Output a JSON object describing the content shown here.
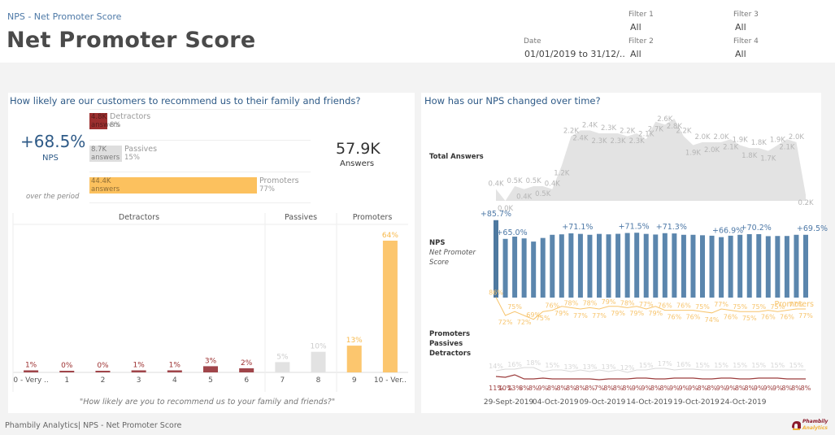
{
  "header": {
    "breadcrumb": "NPS - Net Promoter Score",
    "title": "Net Promoter Score"
  },
  "filters": {
    "date": {
      "label": "Date",
      "value": "01/01/2019 to 31/12/.."
    },
    "filter1": {
      "label": "Filter 1",
      "value": "All"
    },
    "filter2": {
      "label": "Filter 2",
      "value": "All"
    },
    "filter3": {
      "label": "Filter 3",
      "value": "All"
    },
    "filter4": {
      "label": "Filter 4",
      "value": "All"
    }
  },
  "left_panel": {
    "title": "How likely are our customers to recommend us to their family and friends?",
    "nps_value": "+68.5%",
    "nps_label": "NPS",
    "period_label": "over the period",
    "answers_value": "57.9K",
    "answers_label": "Answers",
    "breakdown": [
      {
        "name": "Detractors",
        "count": "4.8K",
        "unit": "answers",
        "pct": "8%",
        "share": 0.083,
        "color": "#9c2f2f"
      },
      {
        "name": "Passives",
        "count": "8.7K",
        "unit": "answers",
        "pct": "15%",
        "share": 0.15,
        "color": "#dedede"
      },
      {
        "name": "Promoters",
        "count": "44.4K",
        "unit": "answers",
        "pct": "77%",
        "share": 0.767,
        "color": "#fcc15e"
      }
    ],
    "question": "\"How likely are you to recommend us to your family and friends?\""
  },
  "right_panel": {
    "title": "How has our NPS changed over time?",
    "row_labels": {
      "total": "Total Answers",
      "nps": "NPS",
      "nps_sub1": "Net Promoter",
      "nps_sub2": "Score",
      "ppd1": "Promoters",
      "ppd2": "Passives",
      "ppd3": "Detractors"
    },
    "promoters_line_label": "Promoters"
  },
  "footer": {
    "text": "Phambily Analytics| NPS - Net Promoter Score",
    "logo_line1": "Phambily",
    "logo_line2": "Analytics"
  },
  "chart_data": [
    {
      "type": "bar",
      "title": "Score distribution",
      "xlabel": "\"How likely are you to recommend us to your family and friends?\"",
      "groups": [
        {
          "name": "Detractors",
          "categories": [
            "0 - Very ..",
            "1",
            "2",
            "3",
            "4",
            "5",
            "6"
          ],
          "color": "#a0454a"
        },
        {
          "name": "Passives",
          "categories": [
            "7",
            "8"
          ],
          "color": "#e2e2e2"
        },
        {
          "name": "Promoters",
          "categories": [
            "9",
            "10 - Ver.."
          ],
          "color": "#fcc66e"
        }
      ],
      "categories": [
        "0 - Very ..",
        "1",
        "2",
        "3",
        "4",
        "5",
        "6",
        "7",
        "8",
        "9",
        "10 - Ver.."
      ],
      "values": [
        1,
        0,
        0,
        1,
        1,
        3,
        2,
        5,
        10,
        13,
        64
      ],
      "value_labels": [
        "1%",
        "0%",
        "0%",
        "1%",
        "1%",
        "3%",
        "2%",
        "5%",
        "10%",
        "13%",
        "64%"
      ],
      "ylim": [
        0,
        64
      ]
    },
    {
      "type": "area",
      "title": "Total Answers",
      "unit": "K",
      "values": [
        0.4,
        0.0,
        0.5,
        0.4,
        0.5,
        0.5,
        0.4,
        1.2,
        2.2,
        2.4,
        2.4,
        2.3,
        2.3,
        2.3,
        2.2,
        2.3,
        2.1,
        2.7,
        2.6,
        2.8,
        2.2,
        1.9,
        2.0,
        2.0,
        2.0,
        2.1,
        1.9,
        1.8,
        1.8,
        1.7,
        1.9,
        2.1,
        2.0,
        0.2
      ],
      "color": "#e3e3e3"
    },
    {
      "type": "bar",
      "title": "NPS Net Promoter Score",
      "unit": "%",
      "values": [
        85.7,
        65.0,
        67.5,
        65.5,
        62.0,
        66.0,
        69.5,
        70.0,
        71.1,
        70.5,
        69.5,
        70.5,
        70.0,
        70.6,
        71.5,
        71.8,
        70.5,
        69.8,
        71.3,
        71.0,
        69.5,
        69.5,
        69.0,
        68.5,
        66.9,
        68.5,
        69.5,
        70.2,
        70.2,
        68.0,
        68.2,
        68.2,
        69.5,
        69.5
      ],
      "labels": {
        "0": "+85.7%",
        "1": "+65.0%",
        "8": "+71.1%",
        "14": "+71.5%",
        "18": "+71.3%",
        "24": "+66.9%",
        "27": "+70.2%",
        "33": "+69.5%"
      },
      "color": "#5b86ad",
      "ylim": [
        0,
        90
      ]
    },
    {
      "type": "line",
      "title": "Promoters / Passives / Detractors",
      "unit": "%",
      "series": [
        {
          "name": "Promoters",
          "color": "#f7c46c",
          "values": [
            86,
            72,
            75,
            72,
            69,
            75,
            76,
            79,
            78,
            77,
            78,
            77,
            79,
            79,
            78,
            79,
            77,
            79,
            76,
            76,
            76,
            76,
            75,
            74,
            77,
            76,
            75,
            75,
            75,
            76,
            75,
            76,
            77,
            77
          ]
        },
        {
          "name": "Passives",
          "color": "#d8d8d8",
          "values": [
            14,
            16,
            16,
            18,
            18,
            13,
            15,
            15,
            13,
            15,
            13,
            15,
            13,
            15,
            12,
            15,
            15,
            17,
            17,
            15,
            16,
            16,
            15,
            15,
            15,
            15,
            15,
            15,
            15,
            15,
            15,
            15,
            15,
            15
          ]
        },
        {
          "name": "Detractors",
          "color": "#9c3d3d",
          "values": [
            11,
            10,
            13,
            8,
            8,
            9,
            8,
            8,
            8,
            8,
            8,
            7,
            8,
            8,
            8,
            9,
            9,
            8,
            8,
            9,
            9,
            9,
            8,
            8,
            9,
            9,
            8,
            8,
            9,
            9,
            9,
            8,
            8,
            8
          ]
        }
      ],
      "x_ticks": [
        "29-Sept-2019",
        "04-Oct-2019",
        "09-Oct-2019",
        "14-Oct-2019",
        "19-Oct-2019",
        "24-Oct-2019"
      ],
      "ylim": [
        0,
        100
      ]
    }
  ]
}
